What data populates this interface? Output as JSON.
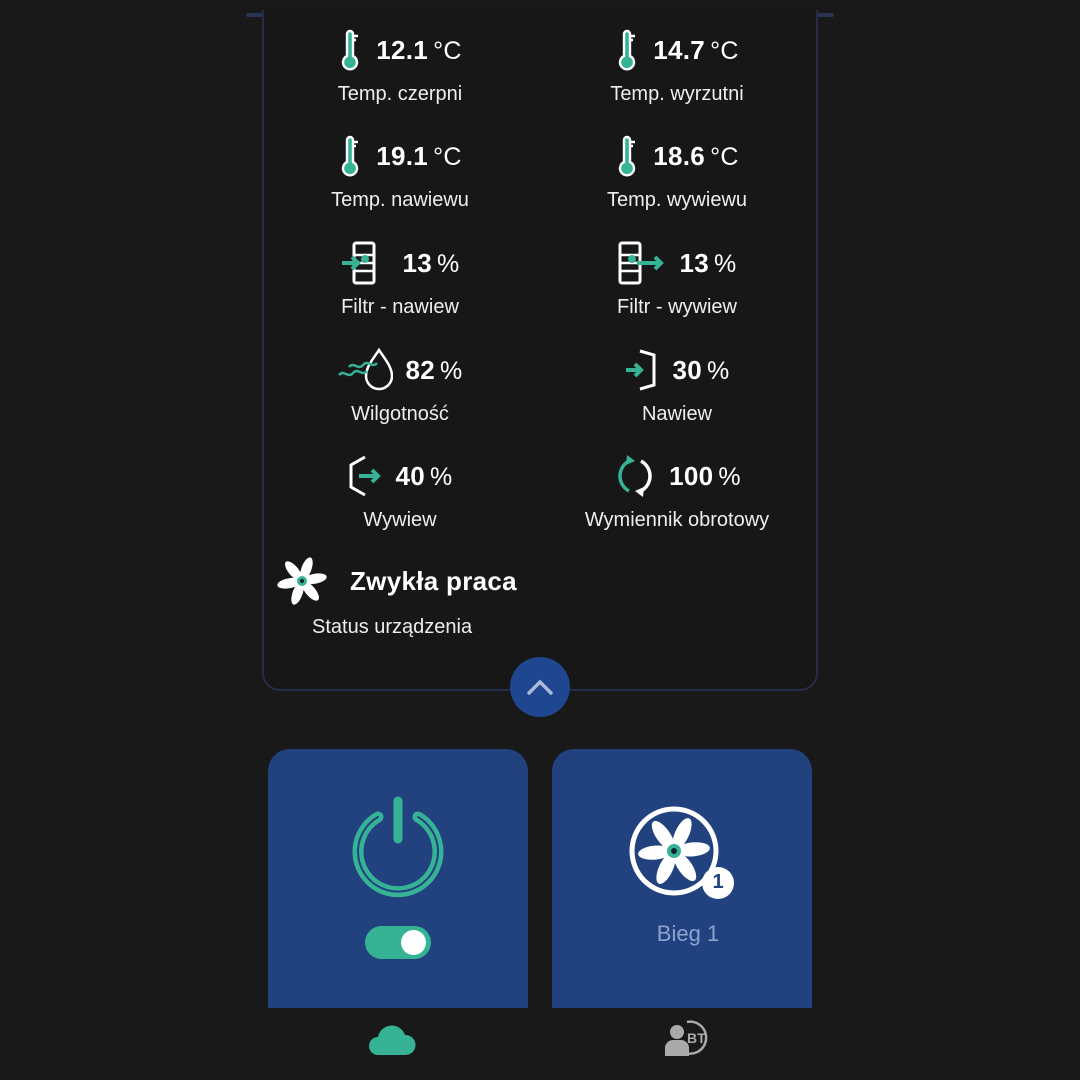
{
  "colors": {
    "accent": "#36b394",
    "card": "#21427f",
    "button": "#1f4690",
    "background": "#191919"
  },
  "readings": [
    {
      "icon": "thermometer-icon",
      "value": "12.1",
      "unit": "°C",
      "label": "Temp. czerpni"
    },
    {
      "icon": "thermometer-icon",
      "value": "14.7",
      "unit": "°C",
      "label": "Temp. wyrzutni"
    },
    {
      "icon": "thermometer-icon",
      "value": "19.1",
      "unit": "°C",
      "label": "Temp. nawiewu"
    },
    {
      "icon": "thermometer-icon",
      "value": "18.6",
      "unit": "°C",
      "label": "Temp. wywiewu"
    },
    {
      "icon": "filter-supply-icon",
      "value": "13",
      "unit": "%",
      "label": "Filtr - nawiew"
    },
    {
      "icon": "filter-exhaust-icon",
      "value": "13",
      "unit": "%",
      "label": "Filtr - wywiew"
    },
    {
      "icon": "humidity-icon",
      "value": "82",
      "unit": "%",
      "label": "Wilgotność"
    },
    {
      "icon": "supply-air-icon",
      "value": "30",
      "unit": "%",
      "label": "Nawiew"
    },
    {
      "icon": "exhaust-air-icon",
      "value": "40",
      "unit": "%",
      "label": "Wywiew"
    },
    {
      "icon": "rotary-exchanger-icon",
      "value": "100",
      "unit": "%",
      "label": "Wymiennik obrotowy"
    }
  ],
  "status": {
    "icon": "fan-icon",
    "value": "Zwykła praca",
    "label": "Status urządzenia"
  },
  "power": {
    "on": true
  },
  "fan_speed": {
    "badge": "1",
    "label": "Bieg 1"
  },
  "nav": [
    {
      "icon": "cloud-icon",
      "active": true
    },
    {
      "icon": "user-bluetooth-icon",
      "active": false
    }
  ]
}
